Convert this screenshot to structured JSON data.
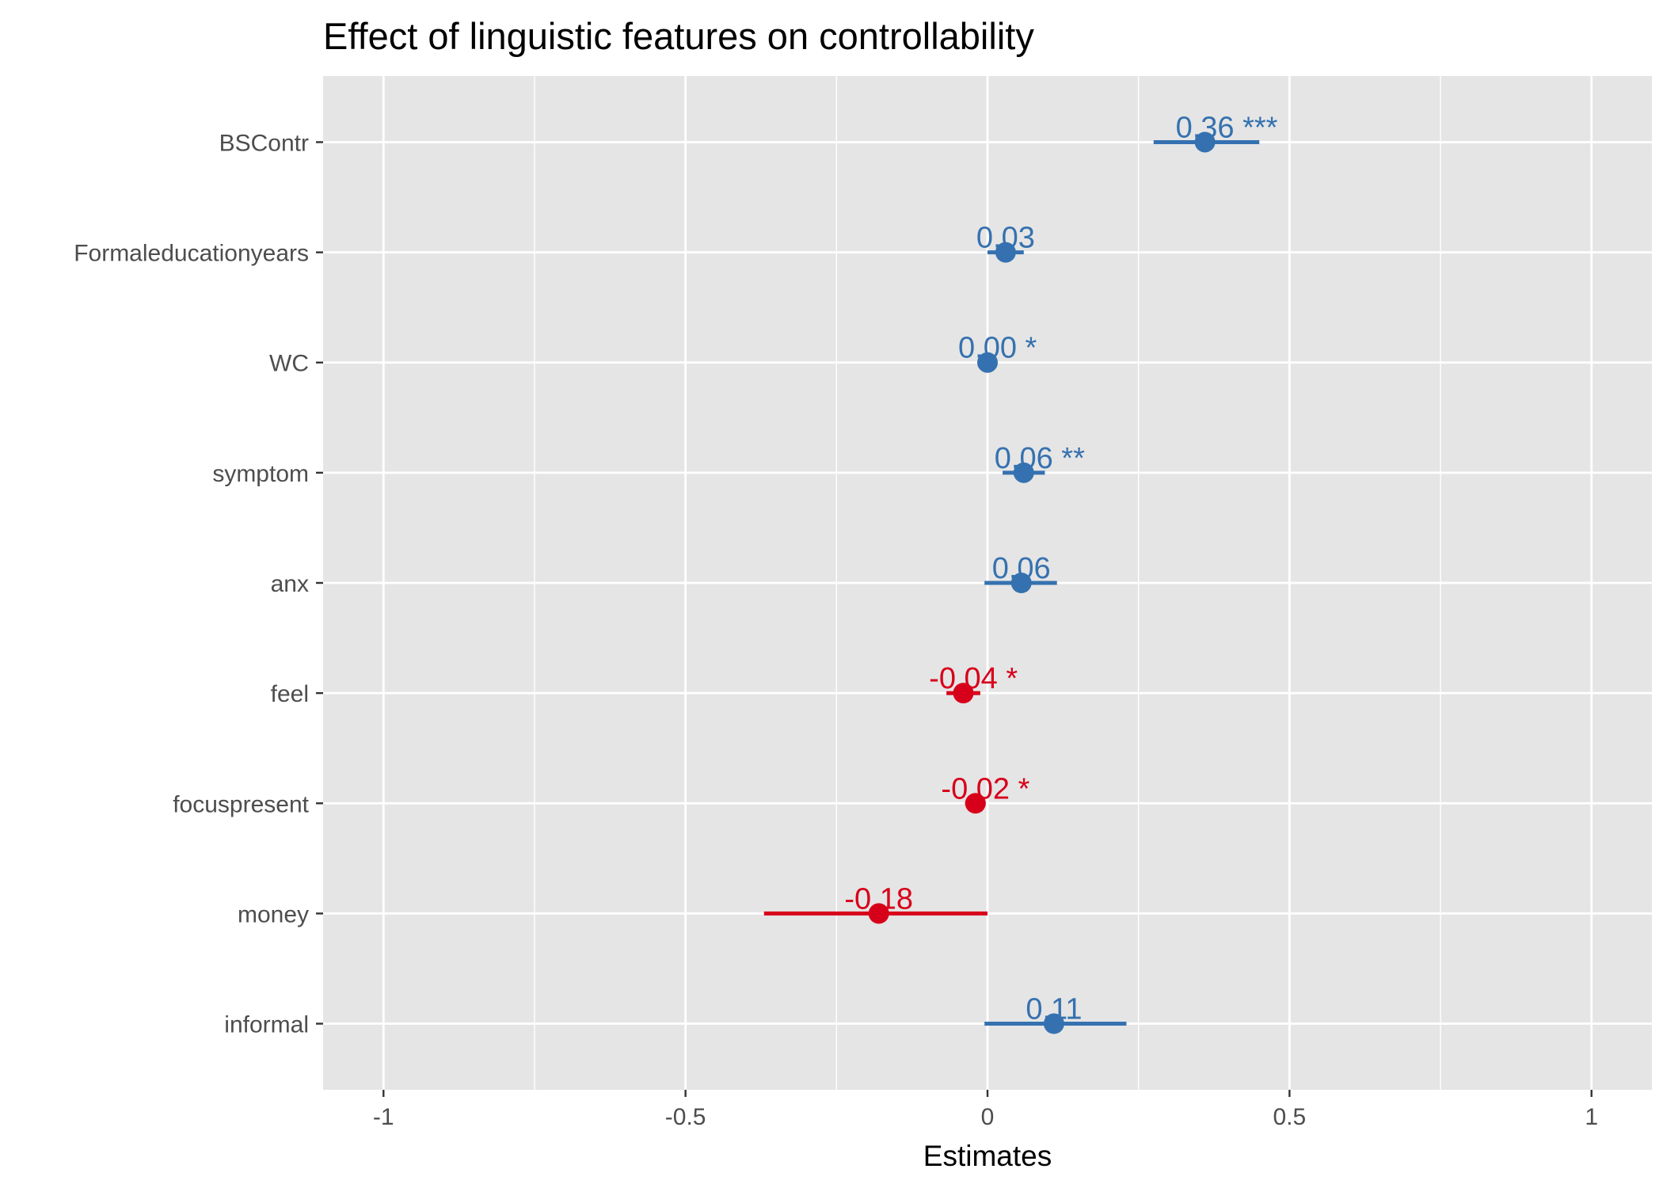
{
  "chart_data": {
    "type": "forest",
    "title": "Effect of linguistic features on controllability",
    "xlabel": "Estimates",
    "ylabel": "",
    "xlim": [
      -1.1,
      1.1
    ],
    "x_ticks": [
      -1,
      -0.5,
      0,
      0.5,
      1
    ],
    "x_tick_labels": [
      "-1",
      "-0.5",
      "0",
      "0.5",
      "1"
    ],
    "grid": true,
    "legend": "none",
    "colors": {
      "positive": "#3571b0",
      "negative": "#d7001a",
      "panel": "#e5e5e5",
      "grid": "#ffffff"
    },
    "terms": [
      {
        "name": "BSContr",
        "estimate": 0.36,
        "ci_low": 0.275,
        "ci_high": 0.45,
        "label": "0.36 ***"
      },
      {
        "name": "Formaleducationyears",
        "estimate": 0.03,
        "ci_low": 0.0,
        "ci_high": 0.06,
        "label": "0.03"
      },
      {
        "name": "WC",
        "estimate": 0.0,
        "ci_low": -0.003,
        "ci_high": 0.003,
        "label": "0.00 *"
      },
      {
        "name": "symptom",
        "estimate": 0.06,
        "ci_low": 0.025,
        "ci_high": 0.095,
        "label": "0.06 **"
      },
      {
        "name": "anx",
        "estimate": 0.056,
        "ci_low": -0.005,
        "ci_high": 0.115,
        "label": "0.06"
      },
      {
        "name": "feel",
        "estimate": -0.04,
        "ci_low": -0.068,
        "ci_high": -0.012,
        "label": "-0.04 *"
      },
      {
        "name": "focuspresent",
        "estimate": -0.02,
        "ci_low": -0.037,
        "ci_high": -0.003,
        "label": "-0.02 *"
      },
      {
        "name": "money",
        "estimate": -0.18,
        "ci_low": -0.37,
        "ci_high": 0.0,
        "label": "-0.18"
      },
      {
        "name": "informal",
        "estimate": 0.11,
        "ci_low": -0.005,
        "ci_high": 0.23,
        "label": "0.11"
      }
    ]
  }
}
